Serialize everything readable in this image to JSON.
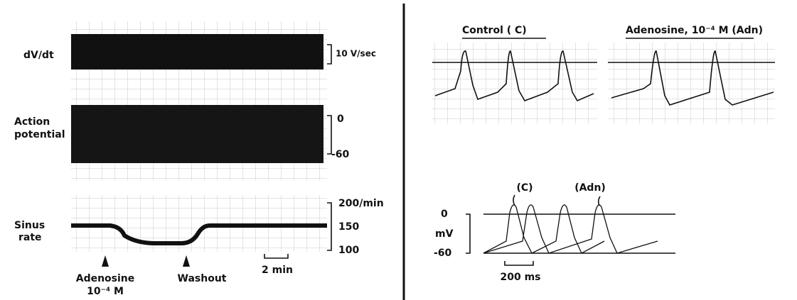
{
  "left": {
    "dvdt": {
      "label": "dV/dt",
      "scale": "10 V/sec"
    },
    "action_potential": {
      "label": [
        "Action",
        "potential"
      ],
      "scale_top": "0",
      "scale_bottom": "-60"
    },
    "sinus_rate": {
      "label": [
        "Sinus",
        "rate"
      ],
      "scale": [
        "200/min",
        "150",
        "100"
      ],
      "time_bar": "2 min"
    },
    "markers": {
      "adenosine": [
        "Adenosine",
        "10⁻⁴ M"
      ],
      "washout": "Washout"
    }
  },
  "right": {
    "control_title": "Control ( C)",
    "adenosine_title": "Adenosine, 10⁻⁴ M (Adn)",
    "overlay": {
      "c_label": "(C)",
      "adn_label": "(Adn)",
      "zero": "0",
      "unit": "mV",
      "minus": "-60",
      "time_bar": "200 ms"
    }
  }
}
